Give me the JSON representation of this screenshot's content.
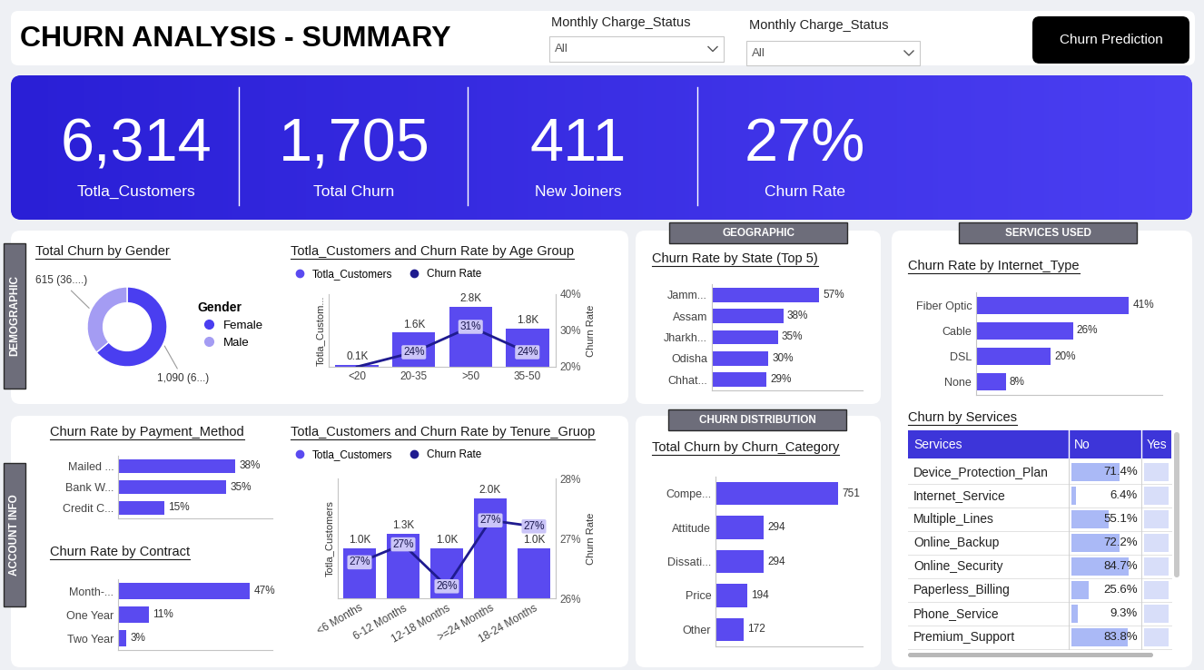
{
  "header": {
    "title": "CHURN ANALYSIS - SUMMARY",
    "filters": [
      {
        "label": "Monthly Charge_Status",
        "value": "All"
      },
      {
        "label": "Monthly Charge_Status",
        "value": "All"
      }
    ],
    "button": "Churn Prediction"
  },
  "kpis": [
    {
      "label": "Totla_Customers",
      "value": "6,314"
    },
    {
      "label": "Total Churn",
      "value": "1,705"
    },
    {
      "label": "New Joiners",
      "value": "411"
    },
    {
      "label": "Churn Rate",
      "value": "27%"
    }
  ],
  "sections": [
    "DEMOGRAPHIC",
    "ACCOUNT INFO",
    "GEOGRAPHIC",
    "SERVICES USED",
    "CHURN DISTRIBUTION"
  ],
  "chart_data": [
    {
      "type": "pie",
      "title": "Total Churn by Gender",
      "categories": [
        "Female",
        "Male"
      ],
      "values": [
        1090,
        615
      ],
      "value_labels": [
        "1,090 (6...)",
        "615 (36....)"
      ],
      "colors": [
        "#4a3ef0",
        "#a49cf3"
      ],
      "data_labels": true,
      "legend": "center left",
      "legend_title": "Gender"
    },
    {
      "type": "bar",
      "title": "Totla_Customers and Churn Rate by Age Group",
      "categories": [
        "<20",
        "20-35",
        ">50",
        "35-50"
      ],
      "y_label": "Totla_Custom...",
      "y2_label": "Churn Rate",
      "ylim": [
        0,
        3400
      ],
      "yticks": [],
      "y2lim": [
        20,
        40
      ],
      "y2ticks": [
        {
          "value": 20,
          "label": "20%"
        },
        {
          "value": 30,
          "label": "30%"
        },
        {
          "value": 40,
          "label": "40%"
        }
      ],
      "legend": "upper left",
      "data_labels": true,
      "series": [
        {
          "name": "Totla_Customers",
          "type": "bar",
          "color": "#5a4af0",
          "values": [
            100,
            1600,
            2800,
            1800
          ],
          "value_labels": [
            "0.1K",
            "1.6K",
            "2.8K",
            "1.8K"
          ]
        },
        {
          "name": "Churn Rate",
          "type": "line",
          "axis": "y2",
          "color": "#1f1b8f",
          "values": [
            20,
            24,
            31,
            24
          ],
          "value_labels": [
            null,
            "24%",
            "31%",
            "24%"
          ]
        }
      ]
    },
    {
      "type": "bar",
      "orientation": "horizontal",
      "title": "Churn Rate by State (Top 5)",
      "categories": [
        "Jamm...",
        "Assam",
        "Jharkh...",
        "Odisha",
        "Chhat..."
      ],
      "values": [
        57,
        38,
        35,
        30,
        29
      ],
      "value_labels": [
        "57%",
        "38%",
        "35%",
        "30%",
        "29%"
      ],
      "color": "#5a4af0",
      "xlim": [
        0,
        80
      ],
      "xticks": [],
      "tick_labels": "y",
      "data_labels": true
    },
    {
      "type": "bar",
      "orientation": "horizontal",
      "title": "Churn Rate by Internet_Type",
      "categories": [
        "Fiber Optic",
        "Cable",
        "DSL",
        "None"
      ],
      "values": [
        41,
        26,
        20,
        8
      ],
      "value_labels": [
        "41%",
        "26%",
        "20%",
        "8%"
      ],
      "color": "#5a4af0",
      "xlim": [
        0,
        50
      ],
      "xticks": [],
      "tick_labels": "y",
      "data_labels": true
    },
    {
      "type": "bar",
      "orientation": "horizontal",
      "title": "Churn Rate by Payment_Method",
      "categories": [
        "Mailed ...",
        "Bank W...",
        "Credit C..."
      ],
      "values": [
        38,
        35,
        15
      ],
      "value_labels": [
        "38%",
        "35%",
        "15%"
      ],
      "color": "#5a4af0",
      "xlim": [
        0,
        50
      ],
      "xticks": [],
      "tick_labels": "y",
      "data_labels": true
    },
    {
      "type": "bar",
      "orientation": "horizontal",
      "title": "Churn Rate by Contract",
      "categories": [
        "Month-...",
        "One Year",
        "Two Year"
      ],
      "values": [
        47,
        11,
        3
      ],
      "value_labels": [
        "47%",
        "11%",
        "3%"
      ],
      "color": "#5a4af0",
      "xlim": [
        0,
        55
      ],
      "xticks": [],
      "tick_labels": "y",
      "data_labels": true
    },
    {
      "type": "bar",
      "title": "Totla_Customers and Churn Rate by Tenure_Gruop",
      "categories": [
        "<6 Months",
        "6-12 Months",
        "12-18 Months",
        ">=24 Months",
        "18-24 Months"
      ],
      "y_label": "Totla_Customers",
      "y2_label": "Churn Rate",
      "ylim": [
        0,
        2400
      ],
      "yticks": [],
      "y2lim": [
        26,
        28
      ],
      "y2ticks": [
        {
          "value": 26,
          "label": "26%"
        },
        {
          "value": 27,
          "label": "27%"
        },
        {
          "value": 28,
          "label": "28%"
        }
      ],
      "legend": "upper left",
      "data_labels": true,
      "series": [
        {
          "name": "Totla_Customers",
          "type": "bar",
          "color": "#5a4af0",
          "values": [
            1000,
            1300,
            1000,
            2000,
            1000
          ],
          "value_labels": [
            "1.0K",
            "1.3K",
            "1.0K",
            "2.0K",
            "1.0K"
          ]
        },
        {
          "name": "Churn Rate",
          "type": "line",
          "axis": "y2",
          "color": "#1f1b8f",
          "values": [
            26.6,
            26.9,
            26.2,
            27.3,
            27.2
          ],
          "value_labels": [
            "27%",
            "27%",
            "26%",
            "27%",
            "27%"
          ]
        }
      ]
    },
    {
      "type": "bar",
      "orientation": "horizontal",
      "title": "Total Churn by Churn_Category",
      "categories": [
        "Compe...",
        "Attitude",
        "Dissati...",
        "Price",
        "Other"
      ],
      "values": [
        751,
        294,
        294,
        194,
        172
      ],
      "color": "#5a4af0",
      "xlim": [
        0,
        900
      ],
      "xticks": [],
      "tick_labels": "y",
      "data_labels": true
    }
  ],
  "table": {
    "title": "Churn by Services",
    "columns": [
      "Services",
      "No",
      "Yes"
    ],
    "rows": [
      "Device_Protection_Plan",
      "Internet_Service",
      "Multiple_Lines",
      "Online_Backup",
      "Online_Security",
      "Paperless_Billing",
      "Phone_Service",
      "Premium_Support"
    ],
    "values": [
      71.4,
      6.4,
      55.1,
      72.2,
      84.7,
      25.6,
      9.3,
      83.8
    ],
    "value_labels": [
      "71.4%",
      "6.4%",
      "55.1%",
      "72.2%",
      "84.7%",
      "25.6%",
      "9.3%",
      "83.8%"
    ],
    "xlim": [
      0,
      100
    ],
    "color": "#aab9f6"
  }
}
